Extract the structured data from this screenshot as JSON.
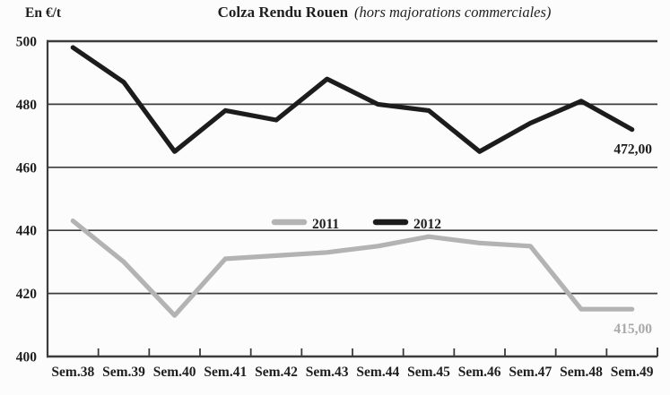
{
  "header": {
    "unit": "En €/t",
    "title": "Colza Rendu Rouen",
    "subtitle": "(hors majorations commerciales)"
  },
  "chart_data": {
    "type": "line",
    "title": "Colza Rendu Rouen",
    "subtitle": "(hors majorations commerciales)",
    "ylabel": "En €/t",
    "xlabel": "",
    "categories": [
      "Sem.38",
      "Sem.39",
      "Sem.40",
      "Sem.41",
      "Sem.42",
      "Sem.43",
      "Sem.44",
      "Sem.45",
      "Sem.46",
      "Sem.47",
      "Sem.48",
      "Sem.49"
    ],
    "series": [
      {
        "name": "2011",
        "color": "#b3b3b3",
        "values": [
          443,
          430,
          413,
          431,
          432,
          433,
          435,
          438,
          436,
          435,
          415,
          415
        ],
        "end_label": {
          "text": "415,00",
          "color": "#a9a9a9"
        }
      },
      {
        "name": "2012",
        "color": "#1c1c1c",
        "values": [
          498,
          487,
          465,
          478,
          475,
          488,
          480,
          478,
          465,
          474,
          481,
          472
        ],
        "end_label": {
          "text": "472,00",
          "color": "#1c1c1c"
        }
      }
    ],
    "ylim": [
      400,
      500
    ],
    "yticks": [
      500,
      480,
      460,
      440,
      420,
      400
    ],
    "grid": true,
    "legend": {
      "entries": [
        "2011",
        "2012"
      ],
      "position": "middle-center"
    },
    "axis_color": "#3c3c3c",
    "label_color": "#1f1f1f"
  }
}
